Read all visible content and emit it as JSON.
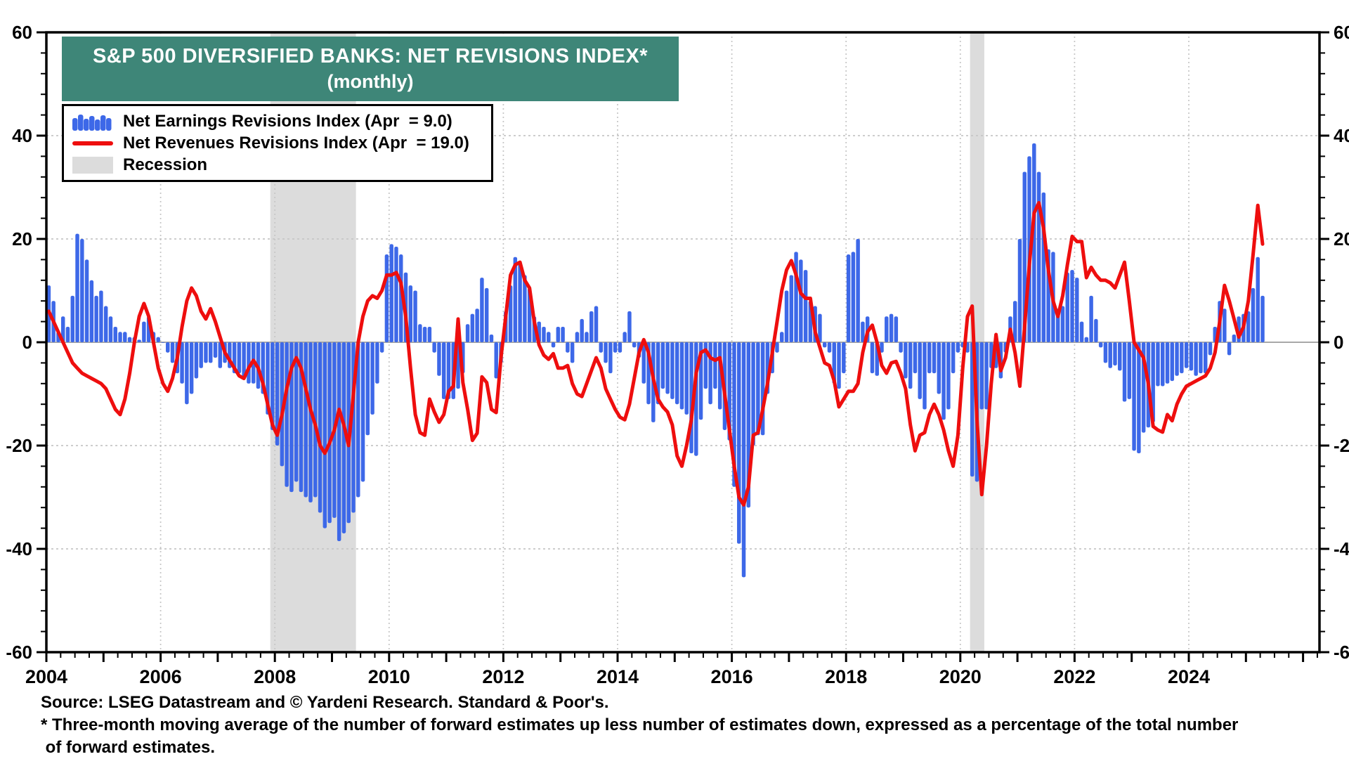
{
  "title": {
    "line1": "S&P 500 DIVERSIFIED BANKS: NET REVISIONS INDEX*",
    "line2": "(monthly)"
  },
  "legend": {
    "entries": [
      {
        "id": "earnings",
        "label": "Net Earnings Revisions Index (Apr  = 9.0)",
        "swatch": "blue-bars-icon"
      },
      {
        "id": "revenues",
        "label": "Net Revenues Revisions Index (Apr  = 19.0)",
        "swatch": "red-line-icon"
      },
      {
        "id": "recession",
        "label": "Recession",
        "swatch": "gray-rect-icon"
      }
    ]
  },
  "footer": {
    "source": "Source: LSEG Datastream and © Yardeni Research. Standard & Poor's.",
    "footnote1": "* Three-month moving average of the number of forward estimates up less number of estimates down, expressed as a percentage of the total number",
    "footnote2": " of forward estimates."
  },
  "colors": {
    "banner": "#3E8678",
    "bars": "#3D68E8",
    "line": "#EE0E0E",
    "recession": "#DCDCDC",
    "grid": "#C6C6C6",
    "zero_line": "#9B9B9B",
    "axis": "#000000"
  },
  "chart_data": {
    "type": "combo",
    "title": "S&P 500 DIVERSIFIED BANKS: NET REVISIONS INDEX* (monthly)",
    "x_start": "2004-01",
    "x_end": "2025-04",
    "frequency": "monthly",
    "ylim": [
      -60,
      60
    ],
    "y_ticks": [
      60,
      40,
      20,
      0,
      -20,
      -40,
      -60
    ],
    "x_ticks": [
      2004,
      2006,
      2008,
      2010,
      2012,
      2014,
      2016,
      2018,
      2020,
      2022,
      2024
    ],
    "grid": true,
    "legend_position": "top-left",
    "recessions": [
      {
        "start": 2007.92,
        "end": 2009.42
      },
      {
        "start": 2020.17,
        "end": 2020.42
      }
    ],
    "series": [
      {
        "name": "Net Earnings Revisions Index",
        "type": "bar",
        "color": "#3D68E8",
        "latest_label": "Apr = 9.0",
        "values": [
          11,
          8,
          2,
          5,
          3,
          9,
          21,
          20,
          16,
          12,
          9,
          10,
          7,
          5,
          3,
          2,
          2,
          1,
          1,
          0.5,
          4,
          5,
          2,
          1,
          0,
          -2,
          -4,
          -6,
          -8,
          -12,
          -10,
          -7,
          -5,
          -4,
          -4,
          -3,
          -5,
          -4,
          -5,
          -6,
          -6,
          -7,
          -8,
          -8,
          -9,
          -10,
          -14,
          -17,
          -20,
          -24,
          -28,
          -29,
          -27,
          -29,
          -30,
          -31,
          -30,
          -33,
          -36,
          -35,
          -34,
          -38.5,
          -37,
          -35,
          -33,
          -30,
          -27,
          -18,
          -14,
          -8,
          -2,
          17,
          19,
          18.5,
          17,
          13.5,
          11,
          10,
          3.5,
          3,
          3,
          -2,
          -6.5,
          -11,
          -11,
          -11,
          -9,
          -6,
          3.5,
          5.5,
          6.5,
          12.5,
          10.5,
          1.5,
          -7,
          -4,
          6,
          11,
          16.5,
          15.5,
          13,
          10.5,
          5,
          4,
          3,
          2,
          -1,
          3,
          3,
          -2,
          -4,
          2,
          4.5,
          2,
          6,
          7,
          -2,
          -4,
          -6,
          -2,
          -2,
          2,
          6,
          -1,
          -3,
          -8,
          -12,
          -15.5,
          -12,
          -9,
          -10,
          -11,
          -12,
          -13,
          -14,
          -21.5,
          -22,
          -15,
          -9,
          -12,
          -9,
          -13,
          -17,
          -19,
          -28,
          -39,
          -45.5,
          -32,
          -20,
          -18,
          -18,
          -10,
          -6,
          -2,
          2,
          10,
          13,
          17.5,
          16,
          14,
          8,
          7,
          5.5,
          -1,
          -2,
          -8,
          -9,
          -6,
          17,
          17.5,
          20,
          4,
          5,
          -6,
          -6.5,
          -2,
          5,
          5.5,
          5,
          -2,
          -7,
          -9,
          -6,
          -11,
          -13,
          -6,
          -6,
          -10,
          -15,
          -13,
          -6,
          -2,
          -1,
          -2,
          -26,
          -27,
          -13,
          -13,
          -5,
          -5,
          -7,
          -2,
          5,
          8,
          20,
          33,
          36,
          38.5,
          33,
          29,
          18,
          17.5,
          6.5,
          7,
          13.5,
          14,
          12.5,
          4,
          1,
          9,
          4.5,
          -1,
          -4,
          -5,
          -4.5,
          -5.5,
          -11.5,
          -11,
          -21,
          -21.5,
          -17.5,
          -16.5,
          -15.5,
          -8.5,
          -8.5,
          -8,
          -7.5,
          -6.5,
          -6,
          -5,
          -5.5,
          -6.5,
          -6,
          -6,
          -2.5,
          3,
          8,
          6.5,
          -2.5,
          1.5,
          5,
          5.5,
          6,
          10.5,
          16.5,
          9
        ]
      },
      {
        "name": "Net Revenues Revisions Index",
        "type": "line",
        "color": "#EE0E0E",
        "latest_label": "Apr = 19.0",
        "values": [
          6,
          4,
          2,
          0,
          -2,
          -4,
          -5,
          -6,
          -6.5,
          -7,
          -7.5,
          -8,
          -9,
          -11,
          -13,
          -14,
          -11,
          -6,
          0,
          5,
          7.5,
          5,
          0,
          -5,
          -8,
          -9.5,
          -7,
          -3,
          3,
          8,
          10.5,
          9,
          6,
          4.5,
          6.5,
          4,
          1,
          -2,
          -3.5,
          -5,
          -6.5,
          -7,
          -5,
          -3.5,
          -5,
          -8,
          -12,
          -16,
          -18,
          -14,
          -9,
          -5,
          -3,
          -5,
          -9,
          -13,
          -16,
          -20,
          -21.5,
          -19.5,
          -17,
          -13,
          -16,
          -20,
          -10,
          0,
          5,
          8,
          9,
          8.5,
          10,
          13,
          13,
          13.5,
          11.5,
          5,
          -5,
          -14,
          -17.5,
          -18,
          -11,
          -13.5,
          -15.5,
          -14,
          -9.5,
          -8.5,
          4.5,
          -7.8,
          -13,
          -19,
          -17.6,
          -6.7,
          -7.8,
          -13,
          -13.6,
          -3,
          5,
          13,
          15,
          15.5,
          12,
          10.5,
          4,
          -0.5,
          -2.5,
          -3.3,
          -2.2,
          -5,
          -5,
          -4.5,
          -8,
          -10,
          -10.5,
          -8,
          -5.5,
          -3,
          -5,
          -9,
          -11,
          -13,
          -14.5,
          -15,
          -12,
          -7,
          -2,
          0.5,
          -2,
          -7,
          -11,
          -12.5,
          -13.5,
          -16,
          -22,
          -24,
          -20,
          -15,
          -6,
          -2,
          -1.5,
          -3,
          -3.5,
          -3,
          -10,
          -17,
          -24,
          -30,
          -31.5,
          -28,
          -18,
          -17.5,
          -13,
          -8,
          -2,
          4,
          10,
          14,
          15.8,
          13,
          9.5,
          8.5,
          8.5,
          2,
          -1,
          -4,
          -4.5,
          -7.5,
          -12.5,
          -11,
          -9.5,
          -9.5,
          -8,
          -2,
          2,
          3.3,
          0,
          -4.5,
          -6,
          -4,
          -3.7,
          -6,
          -9,
          -16,
          -21,
          -18,
          -17.5,
          -14,
          -12,
          -14,
          -17,
          -21,
          -24,
          -18,
          -5,
          5,
          7,
          -15,
          -29.5,
          -20,
          -8,
          1.5,
          -5.5,
          -3,
          2.5,
          -2,
          -8.5,
          3,
          15,
          25,
          27,
          22,
          14,
          8,
          5,
          9,
          15,
          20.5,
          19.5,
          19.5,
          12.5,
          14.5,
          13,
          12,
          12,
          11.5,
          10.5,
          13,
          15.5,
          8,
          0,
          -1.5,
          -3,
          -8,
          -16.3,
          -17,
          -17.4,
          -14,
          -15.2,
          -12,
          -10,
          -8.5,
          -8,
          -7.5,
          -7,
          -6.5,
          -5,
          -2,
          4,
          11,
          8,
          4.5,
          1,
          3,
          8,
          17,
          26.5,
          19
        ]
      }
    ]
  }
}
